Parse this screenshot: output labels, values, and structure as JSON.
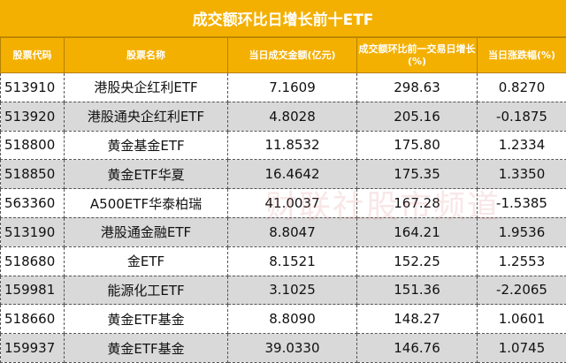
{
  "title": "成交额环比日增长前十ETF",
  "headers": [
    "股票代码",
    "股票名称",
    "当日成交金额(亿元)",
    "成交额环比前一交易日增长(%)",
    "当日涨跌幅(%)"
  ],
  "rows": [
    [
      "513910",
      "港股央企红利ETF",
      "7.1609",
      "298.63",
      "0.8270"
    ],
    [
      "513920",
      "港股通央企红利ETF",
      "4.8028",
      "205.16",
      "-0.1875"
    ],
    [
      "518800",
      "黄金基金ETF",
      "11.8532",
      "175.80",
      "1.2334"
    ],
    [
      "518850",
      "黄金ETF华夏",
      "16.4642",
      "175.35",
      "1.3350"
    ],
    [
      "563360",
      "A500ETF华泰柏瑞",
      "41.0037",
      "167.28",
      "-1.5385"
    ],
    [
      "513190",
      "港股通金融ETF",
      "8.8047",
      "164.21",
      "1.9536"
    ],
    [
      "518680",
      "金ETF",
      "8.1521",
      "152.25",
      "1.2553"
    ],
    [
      "159981",
      "能源化工ETF",
      "3.1025",
      "151.36",
      "-2.2065"
    ],
    [
      "518660",
      "黄金ETF基金",
      "8.8090",
      "148.27",
      "1.0601"
    ],
    [
      "159937",
      "黄金ETF基金",
      "39.0330",
      "146.76",
      "1.0745"
    ]
  ],
  "watermark": "财联社股市频道",
  "colors": {
    "header": "#f4b000",
    "alt_row": "#d9d9d9"
  }
}
